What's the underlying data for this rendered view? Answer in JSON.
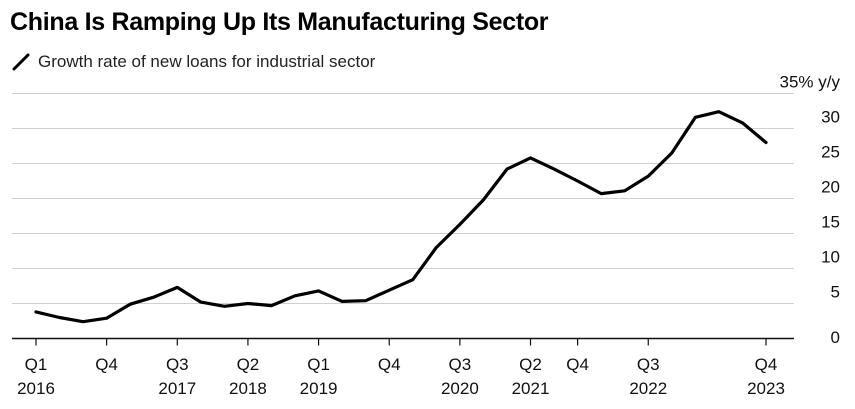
{
  "chart_data": {
    "type": "line",
    "title": "China Is Ramping Up Its Manufacturing Sector",
    "subtitle": "Growth rate of new loans for industrial sector",
    "legend": [
      {
        "name": "Growth rate of new loans for industrial sector",
        "color": "#000000"
      }
    ],
    "xlabel": "",
    "ylabel": "% y/y",
    "ylim": [
      0,
      35
    ],
    "yticks": [
      0,
      5,
      10,
      15,
      20,
      25,
      30,
      35
    ],
    "ytick_labels": [
      "0",
      "5",
      "10",
      "15",
      "20",
      "25",
      "30",
      "35% y/y"
    ],
    "grid": true,
    "x_start": "Q1 2016",
    "xtick_labels": [
      {
        "index": 0,
        "quarter": "Q1",
        "year": "2016"
      },
      {
        "index": 3,
        "quarter": "Q4",
        "year": ""
      },
      {
        "index": 6,
        "quarter": "Q3",
        "year": "2017"
      },
      {
        "index": 9,
        "quarter": "Q2",
        "year": "2018"
      },
      {
        "index": 12,
        "quarter": "Q1",
        "year": "2019"
      },
      {
        "index": 15,
        "quarter": "Q4",
        "year": ""
      },
      {
        "index": 18,
        "quarter": "Q3",
        "year": "2020"
      },
      {
        "index": 21,
        "quarter": "Q2",
        "year": "2021"
      },
      {
        "index": 23,
        "quarter": "Q4",
        "year": ""
      },
      {
        "index": 26,
        "quarter": "Q3",
        "year": "2022"
      },
      {
        "index": 31,
        "quarter": "Q4",
        "year": "2023"
      }
    ],
    "series": [
      {
        "name": "Growth rate of new loans for industrial sector",
        "color": "#000000",
        "values": [
          3.8,
          3.0,
          2.4,
          2.9,
          4.9,
          5.9,
          7.3,
          5.2,
          4.6,
          5.0,
          4.7,
          6.1,
          6.8,
          5.3,
          5.4,
          6.9,
          8.4,
          13.0,
          16.3,
          19.8,
          24.2,
          25.8,
          24.2,
          22.5,
          20.7,
          21.1,
          23.2,
          26.5,
          31.6,
          32.4,
          30.8,
          28.0
        ]
      }
    ]
  }
}
